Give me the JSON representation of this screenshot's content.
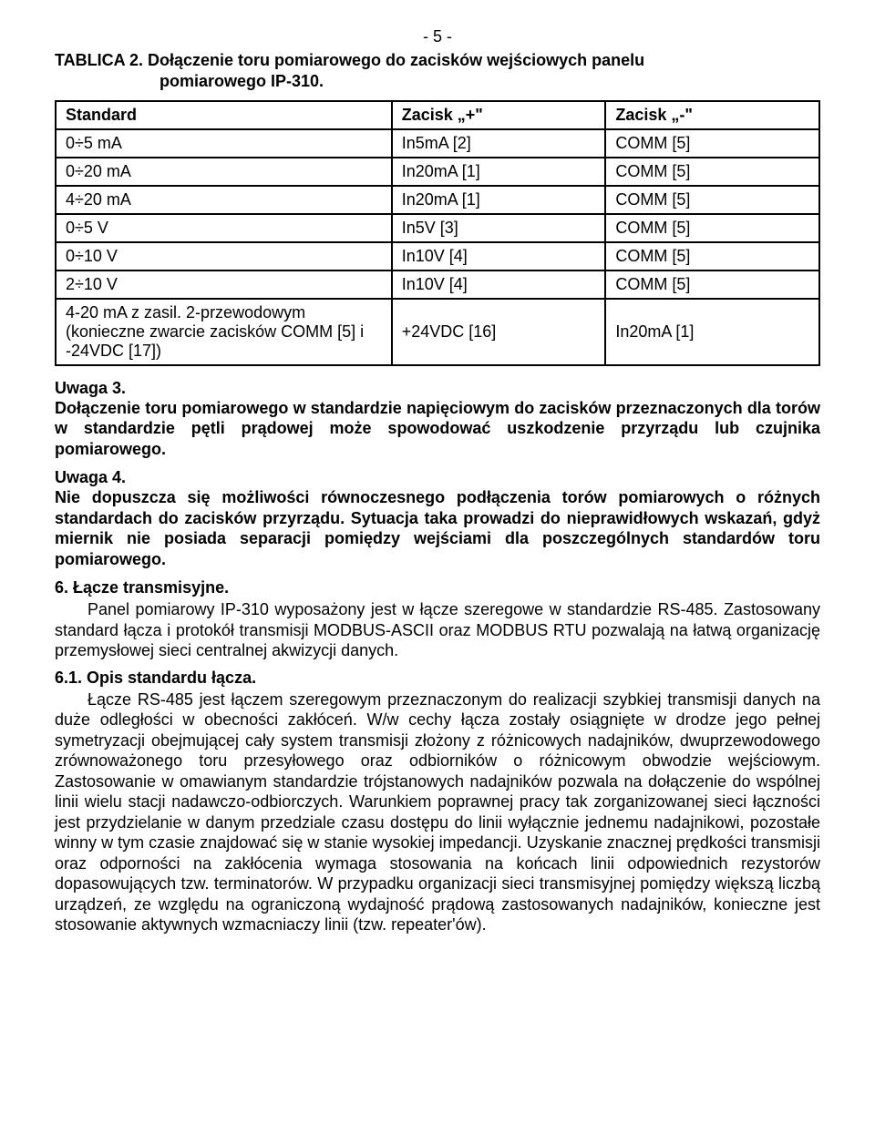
{
  "page_number": "- 5 -",
  "table2": {
    "caption_label": "TABLICA 2.",
    "caption_desc_line1": "Dołączenie toru pomiarowego do zacisków wejściowych panelu",
    "caption_desc_line2": "pomiarowego IP-310.",
    "headers": [
      "Standard",
      "Zacisk „+\"",
      "Zacisk „-\""
    ],
    "rows": [
      [
        "0÷5 mA",
        "In5mA [2]",
        "COMM [5]"
      ],
      [
        "0÷20 mA",
        "In20mA [1]",
        "COMM [5]"
      ],
      [
        "4÷20 mA",
        "In20mA [1]",
        "COMM [5]"
      ],
      [
        "0÷5 V",
        "In5V [3]",
        "COMM [5]"
      ],
      [
        "0÷10 V",
        "In10V [4]",
        "COMM [5]"
      ],
      [
        "2÷10 V",
        "In10V [4]",
        "COMM [5]"
      ],
      [
        "4-20 mA z zasil. 2-przewodowym (konieczne zwarcie zacisków COMM [5] i -24VDC [17])",
        "+24VDC [16]",
        "In20mA [1]"
      ]
    ]
  },
  "note3": {
    "heading": "Uwaga 3.",
    "body": "Dołączenie toru pomiarowego w standardzie napięciowym do zacisków przeznaczonych dla torów w standardzie pętli prądowej może spowodować uszkodzenie przyrządu lub czujnika pomiarowego."
  },
  "note4": {
    "heading": "Uwaga 4.",
    "body": "Nie dopuszcza się możliwości równoczesnego podłączenia torów pomiarowych o różnych standardach do zacisków przyrządu. Sytuacja taka prowadzi do nieprawidłowych wskazań, gdyż miernik nie posiada separacji pomiędzy wejściami dla poszczególnych standardów toru pomiarowego."
  },
  "section6": {
    "heading": "6. Łącze transmisyjne.",
    "body": "Panel pomiarowy IP-310 wyposażony jest w łącze szeregowe w standardzie RS-485. Zastosowany standard łącza i protokół transmisji MODBUS-ASCII oraz MODBUS RTU pozwalają na łatwą organizację przemysłowej sieci centralnej akwizycji danych."
  },
  "section61": {
    "heading": "6.1. Opis standardu łącza.",
    "body": "Łącze RS-485 jest łączem szeregowym przeznaczonym do realizacji szybkiej transmisji danych na duże odległości w obecności zakłóceń. W/w cechy łącza zostały osiągnięte w drodze jego pełnej symetryzacji obejmującej cały system transmisji złożony z różnicowych nadajników, dwuprzewodowego zrównoważonego toru przesyłowego oraz odbiorników o różnicowym obwodzie wejściowym. Zastosowanie w omawianym standardzie trójstanowych nadajników pozwala na dołączenie do wspólnej linii wielu stacji nadawczo-odbiorczych. Warunkiem poprawnej pracy tak zorganizowanej sieci łączności jest przydzielanie w danym przedziale czasu dostępu do linii wyłącznie jednemu nadajnikowi, pozostałe winny w tym czasie znajdować się w stanie wysokiej impedancji. Uzyskanie znacznej prędkości transmisji oraz odporności na zakłócenia wymaga stosowania na końcach linii odpowiednich rezystorów dopasowujących tzw. terminatorów. W przypadku organizacji sieci transmisyjnej pomiędzy większą liczbą urządzeń, ze względu na ograniczoną wydajność prądową zastosowanych nadajników, konieczne jest stosowanie aktywnych wzmacniaczy linii (tzw. repeater'ów)."
  }
}
